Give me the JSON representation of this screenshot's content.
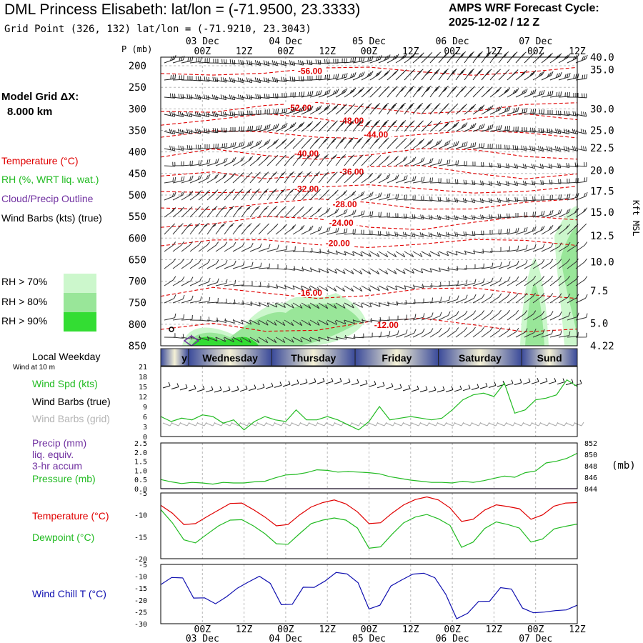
{
  "header": {
    "title": "DML Princess Elisabeth:  lat/lon = (-71.9500, 23.3333)",
    "grid_point": "Grid Point (326, 132) lat/lon = (-71.9210, 23.3043)",
    "cycle_label": "AMPS WRF Forecast Cycle:",
    "cycle_value": "2025-12-02 / 12  Z"
  },
  "model_grid": {
    "label": "Model Grid ΔX:",
    "value": "8.000 km"
  },
  "legend": {
    "temperature": "Temperature (°C)",
    "rh": "RH (%, WRT liq. wat.)",
    "cloud": "Cloud/Precip Outline",
    "wind": "Wind Barbs (kts) (true)"
  },
  "rh_scale": [
    {
      "label": "RH > 70%",
      "color": "#ccf7cc"
    },
    {
      "label": "RH > 80%",
      "color": "#99e699"
    },
    {
      "label": "RH > 90%",
      "color": "#33dd33"
    }
  ],
  "colors": {
    "temperature": "#e00000",
    "rh_green": "#22bb22",
    "wind_chill": "#1010b0",
    "cloud": "#7030a0"
  },
  "local_weekday": {
    "label": "Local Weekday",
    "wind_note": "Wind at 10 m"
  },
  "panel_labels": {
    "wind_spd": "Wind Spd (kts)",
    "wind_barbs_true": "Wind Barbs (true)",
    "wind_barbs_grid": "Wind Barbs (grid)",
    "precip": "Precip (mm)",
    "liq": "liq. equiv.",
    "accum": "3-hr accum",
    "pressure": "Pressure (mb)",
    "temperature": "Temperature (°C)",
    "dewpoint": "Dewpoint (°C)",
    "wind_chill": "Wind Chill T (°C)",
    "p_axis": "P (mb)",
    "kft": "Kft MSL",
    "mb_unit": "(mb)"
  },
  "chart_data": {
    "type": "meteogram",
    "time_axis": {
      "ticks": [
        "00Z",
        "12Z",
        "00Z",
        "12Z",
        "00Z",
        "12Z",
        "00Z",
        "12Z",
        "00Z",
        "12Z"
      ],
      "hours": [
        12,
        24,
        36,
        48,
        60,
        72,
        84,
        96,
        108,
        120
      ],
      "dates": [
        "03 Dec",
        "04 Dec",
        "05 Dec",
        "06 Dec",
        "07 Dec"
      ],
      "date_hours": [
        12,
        36,
        60,
        84,
        108
      ],
      "range_hours": [
        0,
        120
      ]
    },
    "weekdays": [
      {
        "label": "y",
        "start": 0,
        "end": 8
      },
      {
        "label": "Wednesday",
        "start": 8,
        "end": 32
      },
      {
        "label": "Thursday",
        "start": 32,
        "end": 56
      },
      {
        "label": "Friday",
        "start": 56,
        "end": 80
      },
      {
        "label": "Saturday",
        "start": 80,
        "end": 104
      },
      {
        "label": "Sund",
        "start": 104,
        "end": 120
      }
    ],
    "pressure_axis": {
      "ticks": [
        200,
        250,
        300,
        350,
        400,
        450,
        500,
        550,
        600,
        650,
        700,
        750,
        800,
        850
      ],
      "range": [
        180,
        850
      ]
    },
    "height_axis": {
      "ticks": [
        "40.0",
        "35.0",
        "30.0",
        "25.0",
        "22.5",
        "20.0",
        "17.5",
        "15.0",
        "12.5",
        "10.0",
        "7.5",
        "5.0",
        "4.22"
      ],
      "pressure_levels": [
        180,
        209,
        300,
        350,
        391,
        443,
        491,
        540,
        595,
        655,
        722,
        798,
        850
      ]
    },
    "temperature_contours": [
      {
        "label": "-56.00",
        "label_at": [
          43,
          212
        ]
      },
      {
        "label": "-52.00",
        "label_at": [
          40,
          298
        ]
      },
      {
        "label": "-48.00",
        "label_at": [
          55,
          328
        ]
      },
      {
        "label": "-44.00",
        "label_at": [
          62,
          360
        ]
      },
      {
        "label": "-40.00",
        "label_at": [
          42,
          404
        ]
      },
      {
        "label": "-36.00",
        "label_at": [
          55,
          446
        ]
      },
      {
        "label": "-32.00",
        "label_at": [
          42,
          486
        ]
      },
      {
        "label": "-28.00",
        "label_at": [
          53,
          522
        ]
      },
      {
        "label": "-24.00",
        "label_at": [
          52,
          565
        ]
      },
      {
        "label": "-20.00",
        "label_at": [
          51,
          612
        ]
      },
      {
        "label": "-16.00",
        "label_at": [
          43,
          727
        ]
      },
      {
        "label": "-12.00",
        "label_at": [
          65,
          802
        ]
      }
    ],
    "wind_speed": {
      "axis_ticks": [
        0,
        3,
        6,
        9,
        12,
        15,
        18,
        21
      ],
      "ylim": [
        0,
        21
      ],
      "hours": [
        0,
        3,
        6,
        9,
        12,
        15,
        18,
        21,
        24,
        27,
        30,
        33,
        36,
        39,
        42,
        45,
        48,
        51,
        54,
        57,
        60,
        63,
        66,
        69,
        72,
        75,
        78,
        81,
        84,
        87,
        90,
        93,
        96,
        99,
        102,
        105,
        108,
        111,
        114,
        117,
        120
      ],
      "values": [
        6,
        4.5,
        5.5,
        5,
        6.5,
        6,
        4,
        5,
        2,
        4.5,
        6,
        5,
        4.5,
        8,
        5,
        5,
        6,
        5,
        3.5,
        2,
        4.5,
        9,
        5,
        5.5,
        6,
        5.5,
        5,
        5.5,
        8,
        11,
        12.5,
        13,
        12,
        16,
        7,
        8,
        11,
        11.5,
        12.5,
        17,
        15
      ]
    },
    "precip_pressure": {
      "precip_axis_ticks": [
        "0.0",
        "0.5",
        "1.0",
        "1.5",
        "2.0",
        "2.5"
      ],
      "pressure_axis_ticks": [
        844,
        846,
        848,
        850,
        852
      ],
      "precip_mm": [
        0,
        0,
        0,
        0,
        0,
        0,
        0,
        0,
        0,
        0,
        0,
        0,
        0,
        0,
        0,
        0,
        0,
        0,
        0,
        0,
        0,
        0,
        0,
        0,
        0,
        0,
        0,
        0,
        0,
        0,
        0,
        0,
        0,
        0,
        0,
        0,
        0,
        0,
        0,
        0,
        0
      ],
      "pressure_mb": [
        845.6,
        845.2,
        844.9,
        845.1,
        845.0,
        844.8,
        845.1,
        845.0,
        845.0,
        845.2,
        845.3,
        845.9,
        846.4,
        846.5,
        846.8,
        847.3,
        847.2,
        846.9,
        847.0,
        846.9,
        846.8,
        846.6,
        846.1,
        845.8,
        845.5,
        845.3,
        845.1,
        845.1,
        845.0,
        845.3,
        845.1,
        845.4,
        845.8,
        846.2,
        846.0,
        846.8,
        847.1,
        848.5,
        848.8,
        849.3,
        850.2
      ]
    },
    "temperature": {
      "axis_ticks": [
        -5,
        -10,
        -15,
        -20
      ],
      "ylim": [
        -20,
        -5
      ],
      "temp_c": [
        -7.8,
        -9.6,
        -12.2,
        -12.0,
        -10.4,
        -8.9,
        -7.4,
        -7.3,
        -8.8,
        -10.5,
        -12.5,
        -12.2,
        -10.0,
        -8.2,
        -7.2,
        -6.6,
        -7.5,
        -9.3,
        -12.0,
        -11.8,
        -9.6,
        -7.7,
        -6.5,
        -5.9,
        -6.6,
        -8.4,
        -11.5,
        -11.0,
        -8.9,
        -7.7,
        -8.1,
        -8.6,
        -11.0,
        -10.0,
        -8.0,
        -7.3,
        -7.2
      ],
      "dewpoint_c": [
        -8.8,
        -11.8,
        -15.7,
        -16.4,
        -14.4,
        -12.5,
        -11.2,
        -11.1,
        -12.5,
        -14.3,
        -16.6,
        -16.7,
        -14.3,
        -12.0,
        -11.2,
        -10.7,
        -11.2,
        -13.0,
        -17.6,
        -17.3,
        -14.4,
        -11.8,
        -10.5,
        -9.9,
        -10.9,
        -12.4,
        -17.4,
        -16.2,
        -13.1,
        -11.6,
        -12.2,
        -13.0,
        -16.2,
        -15.5,
        -13.2,
        -12.6,
        -12.1
      ]
    },
    "wind_chill": {
      "axis_ticks": [
        -5,
        -10,
        -15,
        -20,
        -25,
        -30
      ],
      "ylim": [
        -30,
        -5
      ],
      "values": [
        -13.5,
        -10.5,
        -10.7,
        -19.2,
        -19.1,
        -21.6,
        -18.6,
        -15.0,
        -12.4,
        -10.0,
        -13.0,
        -22.0,
        -21.8,
        -14.6,
        -14.7,
        -12.0,
        -8.4,
        -9.0,
        -12.7,
        -23.8,
        -22.2,
        -14.1,
        -11.5,
        -9.1,
        -8.7,
        -10.6,
        -17.6,
        -27.9,
        -25.6,
        -20.6,
        -20.5,
        -14.8,
        -15.4,
        -23.4,
        -25.4,
        -25.1,
        -24.5,
        -24.2,
        -22.2
      ]
    }
  }
}
